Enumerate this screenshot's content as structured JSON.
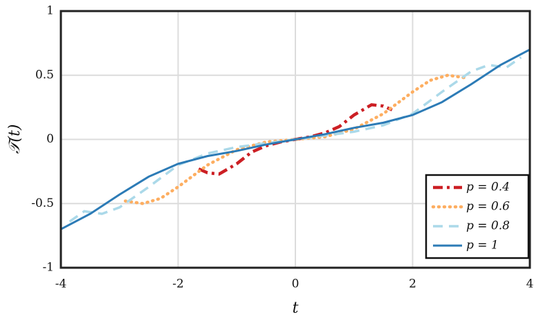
{
  "chart_data": {
    "type": "line",
    "xlabel": "t",
    "ylabel": "𝒯(t)",
    "xlim": [
      -4,
      4
    ],
    "ylim": [
      -1,
      1
    ],
    "xticks": [
      -4,
      -2,
      0,
      2,
      4
    ],
    "yticks": [
      -1,
      -0.5,
      0,
      0.5,
      1
    ],
    "grid": true,
    "legend_position": "lower right",
    "series": [
      {
        "name": "p = 0.4",
        "color": "#cc1f24",
        "style": "dashdot",
        "x": [
          -1.65,
          -1.5,
          -1.3,
          -1,
          -0.75,
          -0.5,
          -0.25,
          0,
          0.25,
          0.5,
          0.75,
          1,
          1.3,
          1.5,
          1.65
        ],
        "values": [
          -0.23,
          -0.26,
          -0.27,
          -0.19,
          -0.1,
          -0.05,
          -0.02,
          0,
          0.02,
          0.05,
          0.1,
          0.19,
          0.27,
          0.26,
          0.23
        ]
      },
      {
        "name": "p = 0.6",
        "color": "#fdae61",
        "style": "dotted",
        "x": [
          -2.9,
          -2.6,
          -2.3,
          -2,
          -1.5,
          -1,
          -0.5,
          0,
          0.5,
          1,
          1.5,
          2,
          2.3,
          2.6,
          2.9
        ],
        "values": [
          -0.48,
          -0.5,
          -0.46,
          -0.37,
          -0.2,
          -0.08,
          -0.02,
          0,
          0.02,
          0.08,
          0.2,
          0.37,
          0.46,
          0.5,
          0.48
        ]
      },
      {
        "name": "p = 0.8",
        "color": "#abd9e9",
        "style": "dashed",
        "x": [
          -3.85,
          -3.6,
          -3.3,
          -3,
          -2.5,
          -2,
          -1.5,
          -1,
          -0.5,
          0,
          0.5,
          1,
          1.5,
          2,
          2.5,
          3,
          3.3,
          3.6,
          3.85
        ],
        "values": [
          -0.64,
          -0.56,
          -0.58,
          -0.53,
          -0.37,
          -0.2,
          -0.11,
          -0.06,
          -0.03,
          0,
          0.03,
          0.06,
          0.11,
          0.2,
          0.37,
          0.53,
          0.58,
          0.56,
          0.64
        ]
      },
      {
        "name": "p = 1",
        "color": "#2c7bb6",
        "style": "solid",
        "x": [
          -4,
          -3.5,
          -3,
          -2.5,
          -2,
          -1.5,
          -1,
          -0.5,
          0,
          0.5,
          1,
          1.5,
          2,
          2.5,
          3,
          3.5,
          4
        ],
        "values": [
          -0.7,
          -0.58,
          -0.43,
          -0.29,
          -0.19,
          -0.13,
          -0.09,
          -0.04,
          0,
          0.04,
          0.09,
          0.13,
          0.19,
          0.29,
          0.43,
          0.58,
          0.7
        ]
      }
    ]
  }
}
